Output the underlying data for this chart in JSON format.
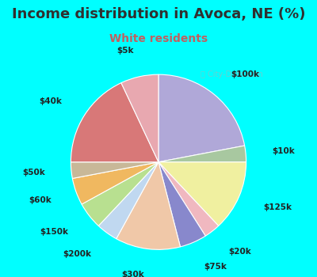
{
  "title": "Income distribution in Avoca, NE (%)",
  "subtitle": "White residents",
  "watermark": "ⓘ City-Data.com",
  "slices": [
    {
      "label": "$100k",
      "value": 22,
      "color": "#b0a8d8"
    },
    {
      "label": "$10k",
      "value": 3,
      "color": "#a8c8a0"
    },
    {
      "label": "$125k",
      "value": 13,
      "color": "#f0f0a0"
    },
    {
      "label": "$20k",
      "value": 3,
      "color": "#f0b8c0"
    },
    {
      "label": "$75k",
      "value": 5,
      "color": "#8888cc"
    },
    {
      "label": "$30k",
      "value": 12,
      "color": "#f0c8a8"
    },
    {
      "label": "$200k",
      "value": 4,
      "color": "#c0d8f0"
    },
    {
      "label": "$150k",
      "value": 5,
      "color": "#b8e090"
    },
    {
      "label": "$60k",
      "value": 5,
      "color": "#f0b860"
    },
    {
      "label": "$50k",
      "value": 3,
      "color": "#c8b898"
    },
    {
      "label": "$40k",
      "value": 18,
      "color": "#d87878"
    },
    {
      "label": "$5k",
      "value": 7,
      "color": "#e8a8b0"
    }
  ],
  "bg_color_top": "#00ffff",
  "bg_color_chart_light": "#e8f8f0",
  "bg_color_chart_dark": "#c8e8d8",
  "title_color": "#303030",
  "subtitle_color": "#c06060",
  "title_fontsize": 13,
  "subtitle_fontsize": 10,
  "label_fontsize": 7.5
}
